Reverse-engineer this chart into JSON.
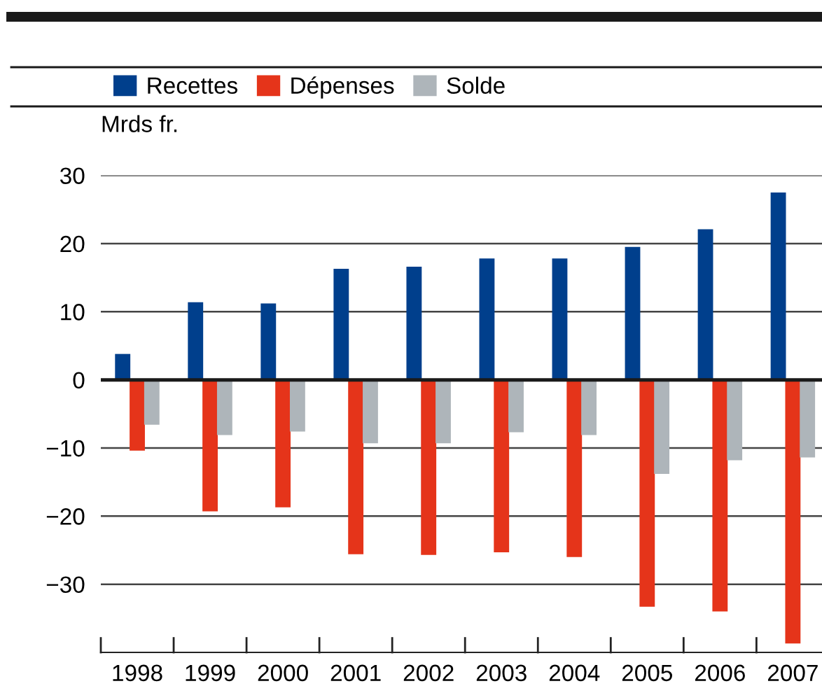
{
  "chart_data": {
    "type": "bar",
    "ylabel": "Mrds fr.",
    "categories": [
      "1998",
      "1999",
      "2000",
      "2001",
      "2002",
      "2003",
      "2004",
      "2005",
      "2006",
      "2007"
    ],
    "series": [
      {
        "name": "Recettes",
        "color": "#003f8c",
        "values": [
          3.8,
          11.4,
          11.2,
          16.3,
          16.6,
          17.8,
          17.8,
          19.5,
          22.1,
          27.5
        ]
      },
      {
        "name": "Dépenses",
        "color": "#e5341a",
        "values": [
          -10.4,
          -19.3,
          -18.7,
          -25.6,
          -25.7,
          -25.3,
          -26.0,
          -33.3,
          -34.0,
          -38.7
        ]
      },
      {
        "name": "Solde",
        "color": "#aeb5ba",
        "values": [
          -6.6,
          -8.1,
          -7.6,
          -9.3,
          -9.3,
          -7.7,
          -8.1,
          -13.8,
          -11.8,
          -11.4
        ]
      }
    ],
    "ylim": [
      -40,
      30
    ],
    "yticks": [
      -30,
      -20,
      -10,
      0,
      10,
      20,
      30
    ],
    "grid": "y",
    "legend": "top left",
    "ref_lines": [
      {
        "axis": "y",
        "value": 0,
        "color": "#1a1a1a"
      }
    ]
  }
}
